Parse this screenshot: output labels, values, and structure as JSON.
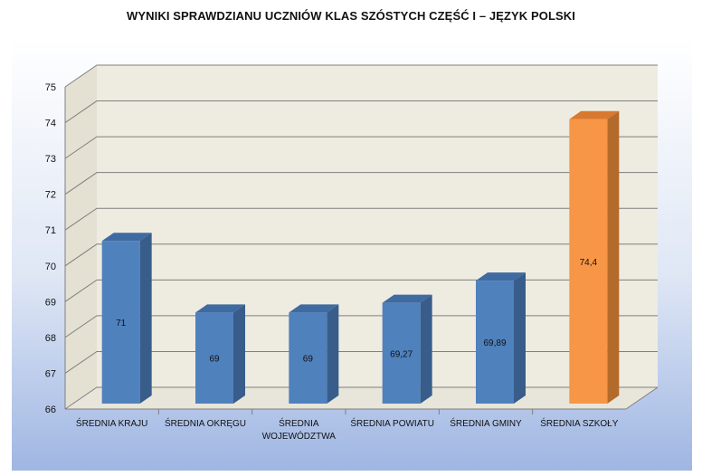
{
  "chart_data": {
    "type": "bar",
    "title": "WYNIKI SPRAWDZIANU UCZNIÓW KLAS SZÓSTYCH CZĘŚĆ I  – JĘZYK POLSKI",
    "categories": [
      [
        "ŚREDNIA KRAJU"
      ],
      [
        "ŚREDNIA OKRĘGU"
      ],
      [
        "ŚREDNIA",
        "WOJEWÓDZTWA"
      ],
      [
        "ŚREDNIA POWIATU"
      ],
      [
        "ŚREDNIA GMINY"
      ],
      [
        "ŚREDNIA  SZKOŁY"
      ]
    ],
    "values": [
      71,
      69,
      69,
      69.27,
      69.89,
      74.4
    ],
    "data_labels": [
      "71",
      "69",
      "69",
      "69,27",
      "69,89",
      "74,4"
    ],
    "ylim": [
      66,
      75
    ],
    "yticks": [
      66,
      67,
      68,
      69,
      70,
      71,
      72,
      73,
      74,
      75
    ],
    "grid": true,
    "legend": "none",
    "colors": {
      "default": "#4f81bd",
      "default_side": "#385d8a",
      "default_top": "#3f6ba1",
      "highlight": "#f79646",
      "highlight_side": "#b46a2a",
      "highlight_top": "#d9782f",
      "plot_bg": "#eeece1",
      "gridline": "#7f7f7f"
    },
    "highlight_index": 5
  }
}
